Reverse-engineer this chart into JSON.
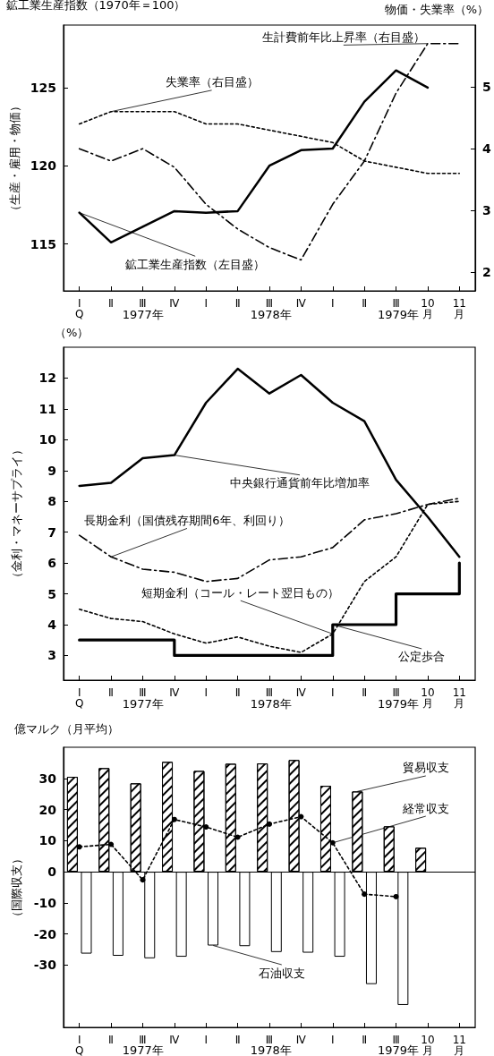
{
  "chart_data": [
    {
      "type": "line",
      "y2label": "物価・失業率（%）",
      "ylabel": "（生産・雇用・物価）",
      "annotations": [
        "鉱工業生産指数（1970年＝100）",
        "1977年",
        "1978年",
        "1979年"
      ],
      "categories": [
        "ⅠQ",
        "Ⅱ",
        "Ⅲ",
        "Ⅳ",
        "Ⅰ",
        "Ⅱ",
        "Ⅲ",
        "Ⅳ",
        "Ⅰ",
        "Ⅱ",
        "Ⅲ",
        "10月",
        "11月"
      ],
      "ylim": [
        112,
        129
      ],
      "yticks": [
        115,
        120,
        125
      ],
      "y2lim": [
        1.7,
        6
      ],
      "y2ticks": [
        2,
        3,
        4,
        5
      ],
      "marker": "none",
      "legend": false,
      "grid": false,
      "series": [
        {
          "name": "鉱工業生産指数（左目盛）",
          "color": "#000000",
          "line_style": "solid",
          "values": [
            117,
            115.1,
            116.1,
            117.1,
            117,
            117.1,
            120,
            121,
            121.1,
            124.1,
            126.1,
            125,
            null
          ]
        },
        {
          "name": "生計費前年比上昇率（右目盛）",
          "color": "#000000",
          "axis": "y2",
          "line_style": "dashed",
          "values": [
            4.0,
            3.8,
            4.0,
            3.7,
            3.1,
            2.7,
            2.4,
            2.2,
            3.1,
            3.8,
            4.9,
            5.7,
            5.7
          ]
        },
        {
          "name": "失業率（右目盛）",
          "color": "#000000",
          "axis": "y2",
          "line_style": "dotted",
          "values": [
            4.4,
            4.6,
            4.6,
            4.6,
            4.4,
            4.4,
            4.3,
            4.2,
            4.1,
            3.8,
            3.7,
            3.6,
            3.6
          ]
        }
      ]
    },
    {
      "type": "line",
      "ylabel": "（金利・マネーサプライ）",
      "annotations": [
        "（%）",
        "1977年",
        "1978年",
        "1979年"
      ],
      "categories": [
        "ⅠQ",
        "Ⅱ",
        "Ⅲ",
        "Ⅳ",
        "Ⅰ",
        "Ⅱ",
        "Ⅲ",
        "Ⅳ",
        "Ⅰ",
        "Ⅱ",
        "Ⅲ",
        "10月",
        "11月"
      ],
      "ylim": [
        2.2,
        13
      ],
      "yticks": [
        3,
        4,
        5,
        6,
        7,
        8,
        9,
        10,
        11,
        12
      ],
      "marker": "none",
      "legend": false,
      "grid": false,
      "series": [
        {
          "name": "中央銀行通貨前年比増加率",
          "color": "#000000",
          "line_style": "solid",
          "values": [
            8.5,
            8.6,
            9.4,
            9.5,
            11.2,
            12.3,
            11.5,
            12.1,
            11.2,
            10.6,
            8.7,
            7.5,
            6.2
          ]
        },
        {
          "name": "長期金利（国債残存期間6年、利回り）",
          "color": "#000000",
          "line_style": "dashed",
          "values": [
            6.9,
            6.2,
            5.8,
            5.7,
            5.4,
            5.5,
            6.1,
            6.2,
            6.5,
            7.4,
            7.6,
            7.9,
            8.1
          ]
        },
        {
          "name": "短期金利（コール・レート翌日もの）",
          "color": "#000000",
          "line_style": "dotted",
          "values": [
            4.5,
            4.2,
            4.1,
            3.7,
            3.4,
            3.6,
            3.3,
            3.1,
            3.7,
            5.4,
            6.2,
            7.9,
            8.0
          ]
        },
        {
          "name": "公定歩合",
          "color": "#000000",
          "type": "step",
          "line_style": "solid",
          "values": [
            3.5,
            3.5,
            3.5,
            3,
            3,
            3,
            3,
            3,
            4,
            4,
            5,
            5,
            6
          ]
        }
      ]
    },
    {
      "type": "bar",
      "ylabel": "（国際収支）",
      "annotations": [
        "億マルク（月平均）",
        "1977年",
        "1978年",
        "1979年"
      ],
      "categories": [
        "ⅠQ",
        "Ⅱ",
        "Ⅲ",
        "Ⅳ",
        "Ⅰ",
        "Ⅱ",
        "Ⅲ",
        "Ⅳ",
        "Ⅰ",
        "Ⅱ",
        "Ⅲ",
        "10月",
        "11月"
      ],
      "ylim": [
        -50,
        40
      ],
      "yticks": [
        -30,
        -20,
        -10,
        0,
        10,
        20,
        30
      ],
      "legend": false,
      "grid": false,
      "ref_lines": [
        {
          "axis": "y",
          "value": 0
        }
      ],
      "series": [
        {
          "name": "貿易収支",
          "color": "#ffffff",
          "values": [
            30.5,
            33.3,
            28.4,
            35.3,
            32.4,
            34.7,
            34.8,
            35.9,
            27.6,
            25.8,
            14.6,
            7.7,
            null
          ]
        },
        {
          "name": "石油収支",
          "color": "#ffffff",
          "values": [
            -26.3,
            -27,
            -27.8,
            -27.3,
            -23.7,
            -23.9,
            -25.8,
            -26,
            -27.3,
            -36.1,
            -42.8,
            null,
            null
          ]
        },
        {
          "name": "経常収支",
          "color": "#000000",
          "type": "line",
          "line_style": "dotted",
          "marker": "circle",
          "values": [
            8.0,
            8.8,
            -2.6,
            16.8,
            14.4,
            11.1,
            15.3,
            17.7,
            9.3,
            -7.2,
            -8.0,
            null,
            null
          ]
        }
      ]
    }
  ]
}
